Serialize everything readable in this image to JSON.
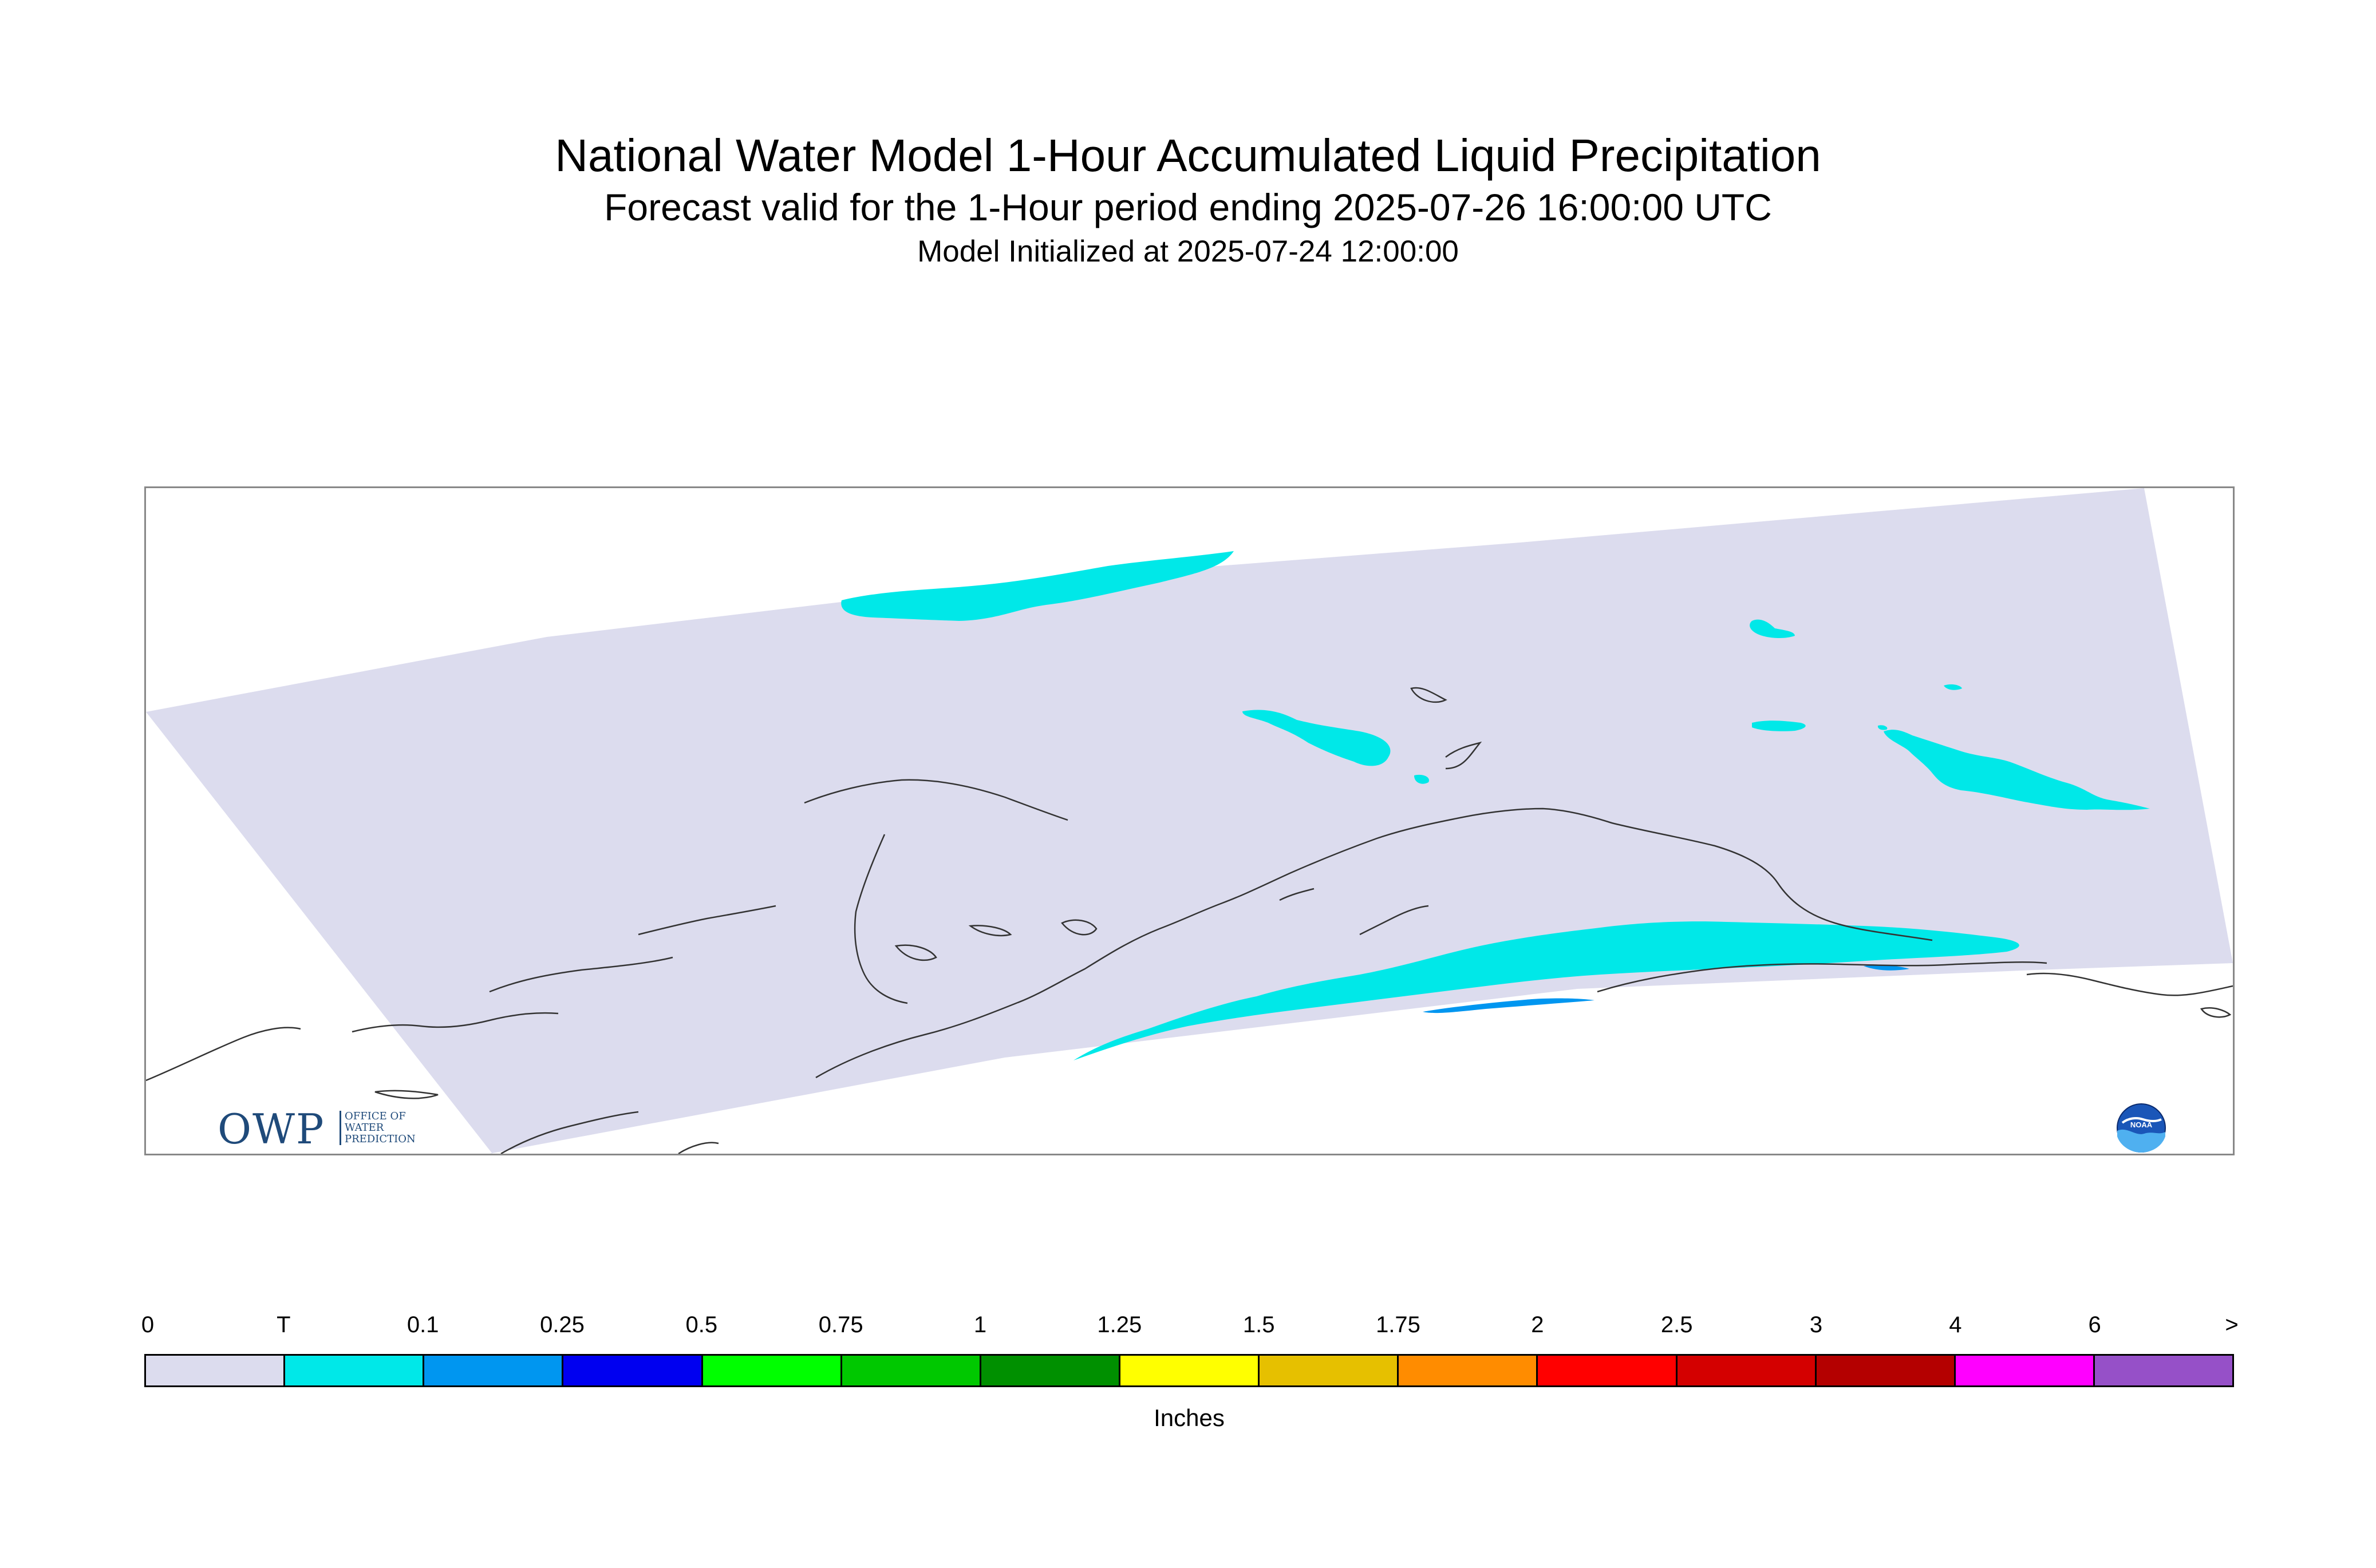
{
  "header": {
    "title": "National Water Model 1-Hour Accumulated Liquid Precipitation",
    "subtitle": "Forecast valid for the 1-Hour period ending 2025-07-26 16:00:00 UTC",
    "initialized": "Model Initialized at 2025-07-24 12:00:00"
  },
  "logos": {
    "owp": {
      "letters": "OWP",
      "line1": "OFFICE OF",
      "line2": "WATER",
      "line3": "PREDICTION"
    },
    "noaa": {
      "text": "NOAA"
    }
  },
  "map": {
    "domain_color": "#dcdcee",
    "coast_color": "#333333",
    "precip_colors": {
      "trace": "#00e8e8",
      "p01": "#0096f0"
    }
  },
  "legend": {
    "ticks": [
      "0",
      "T",
      "0.1",
      "0.25",
      "0.5",
      "0.75",
      "1",
      "1.25",
      "1.5",
      "1.75",
      "2",
      "2.5",
      "3",
      "4",
      "6",
      ">"
    ],
    "colors": [
      "#dcdcee",
      "#00e8e8",
      "#0096f0",
      "#0000f0",
      "#00ff00",
      "#00c800",
      "#009000",
      "#ffff00",
      "#e6c000",
      "#ff8c00",
      "#ff0000",
      "#d40000",
      "#b40000",
      "#ff00ff",
      "#9650c8"
    ],
    "unit": "Inches"
  }
}
